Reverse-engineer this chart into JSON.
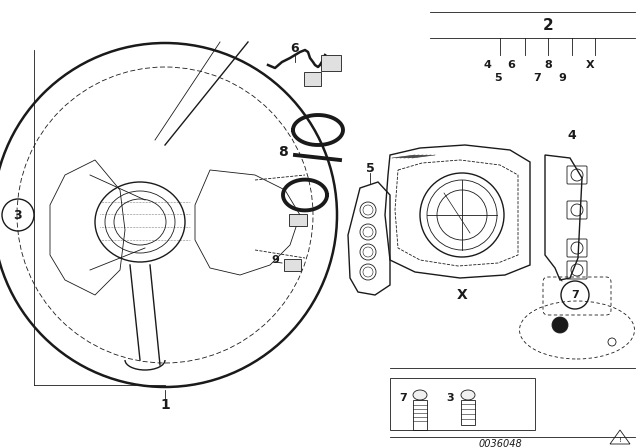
{
  "background_color": "#ffffff",
  "line_color": "#1a1a1a",
  "fig_width": 6.4,
  "fig_height": 4.48,
  "dpi": 100,
  "bottom_label": "0036048",
  "title_text": ""
}
